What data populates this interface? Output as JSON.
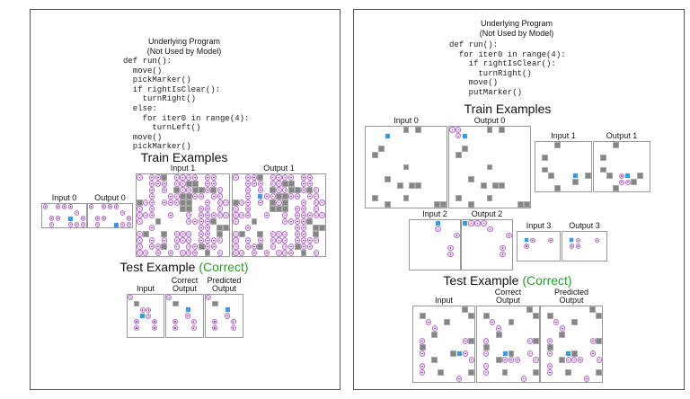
{
  "left": {
    "title_line1": "Underlying Program",
    "title_line2": "(Not Used by Model)",
    "code": "def run():\n  move()\n  pickMarker()\n  if rightIsClear():\n    turnRight()\n  else:\n    for iter0 in range(4):\n      turnLeft()\n  move()\n  pickMarker()",
    "train_heading": "Train Examples",
    "test_heading": "Test Example",
    "test_status": "(Correct)",
    "grids": {
      "in0": {
        "label": "Input 0",
        "rows": [
          "o.ooo..",
          ".....o.",
          ".oo.>.o",
          ".o..ooo"
        ]
      },
      "out0": {
        "label": "Output 0",
        "rows": [
          "o.ooo..",
          ".....o.",
          ".oo...o",
          ".o..<oo"
        ]
      },
      "in1": {
        "label": "Input 1",
        "rows": [
          "o.oo#.oooo.oo..",
          "..ooo.oo##.oo..",
          "..o.o.#oo##o#o.",
          "..o..oo##oo.oo.",
          "#oo.ooo##..o.oo",
          "o.o....##.oo.o.",
          "ooo..o..o.ooooo",
          "o..#....oooo#..",
          "..o.......oo.##",
          "o#..#.ooo.oo.#.",
          "o.o.o.ooo.oooo.",
          "o.oo#.o.oo#oo..",
          "oo.o.o.ooo.#.o."
        ]
      },
      "out1": {
        "label": "Output 1",
        "rows": [
          "o.oo#.oooo.oo..",
          "..ooo.oo##.oo..",
          "..o.o.#oo##o#o.",
          "..o.>oo##oo.oo.",
          "#oo.o.#o#..o.oo",
          "o.o...###.oo.o.",
          "ooo..o..o.ooooo",
          "o..#....oooo#..",
          "..o.......oo.##",
          "o#..#.ooo.oo.#.",
          "o.o.o.ooo.oooo.",
          "o.oo#.o.oo#oo..",
          "oo.o.o.ooo.#.o."
        ]
      },
      "test_in": {
        "label": "Input",
        "rows": [
          "o.....",
          ".#....",
          "..oo..",
          "..>o..",
          ".o..o.",
          ".o..o.",
          "......"
        ]
      },
      "test_correct": {
        "label": "Correct\nOutput",
        "rows": [
          "o.....",
          ".#....",
          "...^..",
          "...o..",
          ".o..o.",
          ".o..o.",
          "......"
        ]
      },
      "test_pred": {
        "label": "Predicted\nOutput",
        "rows": [
          "o.....",
          ".#....",
          "...^..",
          "...o..",
          ".o..o.",
          ".o..o.",
          "......"
        ]
      }
    }
  },
  "right": {
    "title_line1": "Underlying Program",
    "title_line2": "(Not Used by Model)",
    "code": "def run():\n  for iter0 in range(4):\n    if rightIsClear():\n      turnRight()\n    move()\n    putMarker()",
    "train_heading": "Train Examples",
    "test_heading": "Test Example",
    "test_status": "(Correct)",
    "grids": {
      "in0": {
        "label": "Input 0",
        "rows": [
          "......#.#....",
          "...<.........",
          ".............",
          "..#..........",
          ".#...........",
          ".............",
          "......#......",
          ".............",
          "...#.........",
          ".....#.##....",
          ".............",
          ".#....#......",
          "...#.......##"
        ]
      },
      "out0": {
        "label": "Output 0",
        "rows": [
          "oo....#.#....",
          ".o<..........",
          ".............",
          "..#..........",
          ".#...........",
          ".............",
          "......#......",
          ".............",
          "...#.........",
          ".....#.##....",
          ".............",
          ".#....#......",
          "...#.......##"
        ]
      },
      "in1": {
        "label": "Input 1",
        "rows": [
          "...#.....",
          ".........",
          ".#.......",
          ".........",
          ".#.......",
          "..#...^.#",
          "......#..",
          "...#....."
        ]
      },
      "out1": {
        "label": "Output 1",
        "rows": [
          "...#.....",
          ".........",
          ".#.......",
          ".........",
          ".#.......",
          "..#.o^.#.",
          "....oo#..",
          "...#....."
        ]
      },
      "in2": {
        "label": "Input 2",
        "rows": [
          "....<...",
          "....o...",
          ".......o",
          "........",
          "......o.",
          "......o.",
          "........",
          "........"
        ]
      },
      "out2": {
        "label": "Output 2",
        "rows": [
          "<ooo....",
          "....o...",
          ".......o",
          "........",
          "......o.",
          "......o.",
          "........",
          "........"
        ]
      },
      "in3": {
        "label": "Input 3",
        "rows": [
          ".......",
          ".>o..o.",
          ".o.....",
          ".......",
          "......."
        ]
      },
      "out3": {
        "label": "Output 3",
        "rows": [
          ".......",
          ".>o..o.",
          ".oo....",
          ".......",
          "......."
        ]
      },
      "test_in": {
        "label": "Input",
        "rows": [
          "........#.",
          ".#.......#",
          "..o..#....",
          "...o......",
          "...#......",
          ".o......o#",
          ".#........",
          ".o....#>o.",
          "...#.....o",
          ".o........",
          ".o..#....#",
          ".......o.."
        ]
      },
      "test_correct": {
        "label": "Correct\nOutput",
        "rows": [
          "........#.",
          ".#.......#",
          "..o..#....",
          "...o......",
          "...#......",
          ".o......o#",
          ".#........",
          ".o..<#..o.",
          "...#ooo..o",
          ".o........",
          ".o..#....#",
          ".......o.."
        ]
      },
      "test_pred": {
        "label": "Predicted\nOutput",
        "rows": [
          "........#.",
          ".#.......#",
          "..o..#....",
          "...o......",
          "...#......",
          ".o......o#",
          ".#........",
          ".o..<#..o.",
          "...#ooo..o",
          ".o........",
          ".o..#....#",
          ".......o.."
        ]
      }
    }
  },
  "colors": {
    "correct": "#2a9a2a",
    "wall": "#858585",
    "marker": "#efd6f5",
    "robot": "#3b9be0"
  }
}
